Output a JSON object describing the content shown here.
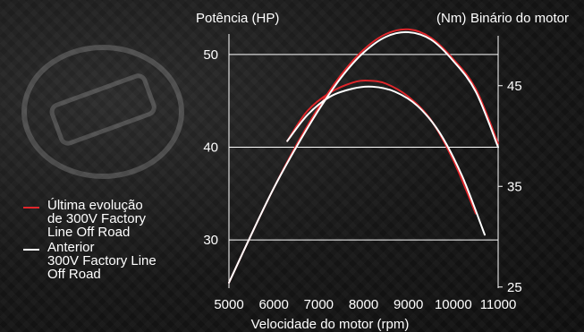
{
  "chart_data": {
    "type": "line",
    "title_left": "Potência (HP)",
    "title_right_a": "Binário do motor",
    "title_right_b": "(Nm)",
    "xlabel": "Velocidade do motor (rpm)",
    "x_ticks": [
      "5000",
      "6000",
      "7000",
      "8000",
      "9000",
      "10000",
      "11000"
    ],
    "y_left_ticks": [
      "30",
      "40",
      "50"
    ],
    "y_right_ticks": [
      "25",
      "35",
      "45"
    ],
    "xlim": [
      5000,
      11000
    ],
    "ylim_left": [
      25,
      55
    ],
    "ylim_right": [
      24,
      52
    ],
    "grid": true,
    "colors": {
      "new": "#e0262b",
      "old": "#ffffff",
      "grid": "#ffffff"
    },
    "series": [
      {
        "name": "Última evolução de 300V Factory Line Off Road",
        "quantity": "power",
        "axis": "left",
        "color": "#e0262b",
        "x": [
          5000,
          5500,
          6000,
          6500,
          7000,
          7500,
          8000,
          8500,
          9000,
          9500,
          10000,
          10500,
          11000
        ],
        "y": [
          25.4,
          30.6,
          35.6,
          40.2,
          44.3,
          47.8,
          50.5,
          52.2,
          52.7,
          51.8,
          49.5,
          46.3,
          40.4
        ]
      },
      {
        "name": "Anterior 300V Factory Line Off Road",
        "quantity": "power",
        "axis": "left",
        "color": "#ffffff",
        "x": [
          5000,
          5500,
          6000,
          6500,
          7000,
          7500,
          8000,
          8500,
          9000,
          9500,
          10000,
          10500,
          11000
        ],
        "y": [
          25.4,
          30.6,
          35.6,
          40.0,
          44.0,
          47.5,
          50.2,
          51.9,
          52.4,
          51.6,
          49.3,
          46.0,
          40.0
        ]
      },
      {
        "name": "Última evolução de 300V Factory Line Off Road",
        "quantity": "torque",
        "axis": "right",
        "color": "#e0262b",
        "x": [
          6300,
          6750,
          7250,
          7750,
          8100,
          8500,
          9000,
          9500,
          10000,
          10500
        ],
        "y": [
          39.5,
          42.5,
          44.3,
          45.3,
          45.5,
          45.2,
          43.9,
          41.6,
          37.6,
          32.3
        ]
      },
      {
        "name": "Anterior 300V Factory Line Off Road",
        "quantity": "torque",
        "axis": "right",
        "color": "#ffffff",
        "x": [
          6300,
          6750,
          7250,
          7750,
          8200,
          8700,
          9200,
          9700,
          10200,
          10700
        ],
        "y": [
          39.5,
          42.1,
          43.9,
          44.7,
          44.9,
          44.4,
          43.0,
          40.3,
          36.0,
          30.2
        ]
      }
    ]
  },
  "legend": {
    "items": [
      {
        "label_l1": "Última evolução",
        "label_l2": "de 300V Factory",
        "label_l3": "Line Off Road",
        "color": "#e0262b"
      },
      {
        "label_l1": "Anterior",
        "label_l2": "300V Factory Line",
        "label_l3": "Off Road",
        "color": "#ffffff"
      }
    ]
  }
}
